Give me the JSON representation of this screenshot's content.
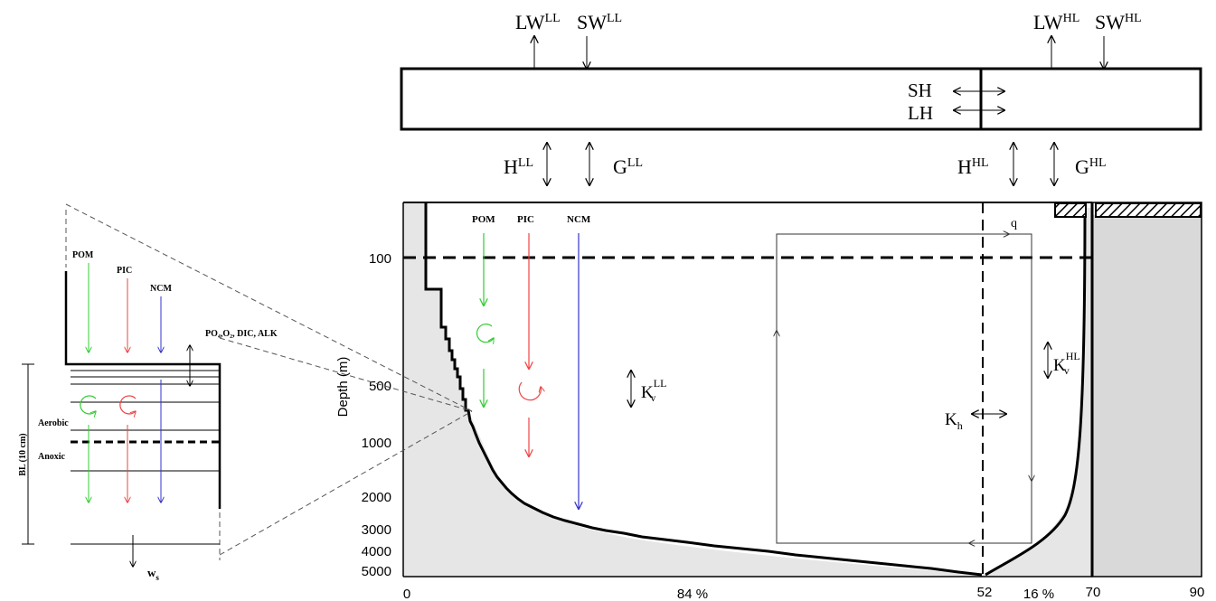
{
  "atmosphere": {
    "lw_ll": {
      "base": "LW",
      "sup": "LL"
    },
    "sw_ll": {
      "base": "SW",
      "sup": "LL"
    },
    "lw_hl": {
      "base": "LW",
      "sup": "HL"
    },
    "sw_hl": {
      "base": "SW",
      "sup": "HL"
    },
    "sh": "SH",
    "lh": "LH",
    "h_ll": {
      "base": "H",
      "sup": "LL"
    },
    "g_ll": {
      "base": "G",
      "sup": "LL"
    },
    "h_hl": {
      "base": "H",
      "sup": "HL"
    },
    "g_hl": {
      "base": "G",
      "sup": "HL"
    }
  },
  "ocean": {
    "pom": "POM",
    "pic": "PIC",
    "ncm": "NCM",
    "q": "q",
    "kv_ll": {
      "base": "K",
      "sub": "v",
      "sup": "LL"
    },
    "kv_hl": {
      "base": "K",
      "sub": "v",
      "sup": "HL"
    },
    "kh": {
      "base": "K",
      "sub": "h"
    },
    "depth_axis_label": "Depth (m)",
    "depth_ticks": [
      "100",
      "500",
      "1000",
      "2000",
      "3000",
      "4000",
      "5000"
    ],
    "lat_ticks": [
      "0",
      "52",
      "70",
      "90"
    ],
    "pct_ll": "84 %",
    "pct_hl": "16 %"
  },
  "sediment": {
    "pom": "POM",
    "pic": "PIC",
    "ncm": "NCM",
    "exchange": "PO₄,O₂, DIC, ALK",
    "aerobic": "Aerobic",
    "anoxic": "Anoxic",
    "bl": "BL (10 cm)",
    "ws": {
      "base": "w",
      "sub": "s"
    }
  },
  "colors": {
    "pom": "#33cc33",
    "pic": "#ee4444",
    "ncm": "#3333cc",
    "seafloor_fill": "#e6e6e6",
    "land_fill": "#d9d9d9",
    "line": "#000000"
  }
}
